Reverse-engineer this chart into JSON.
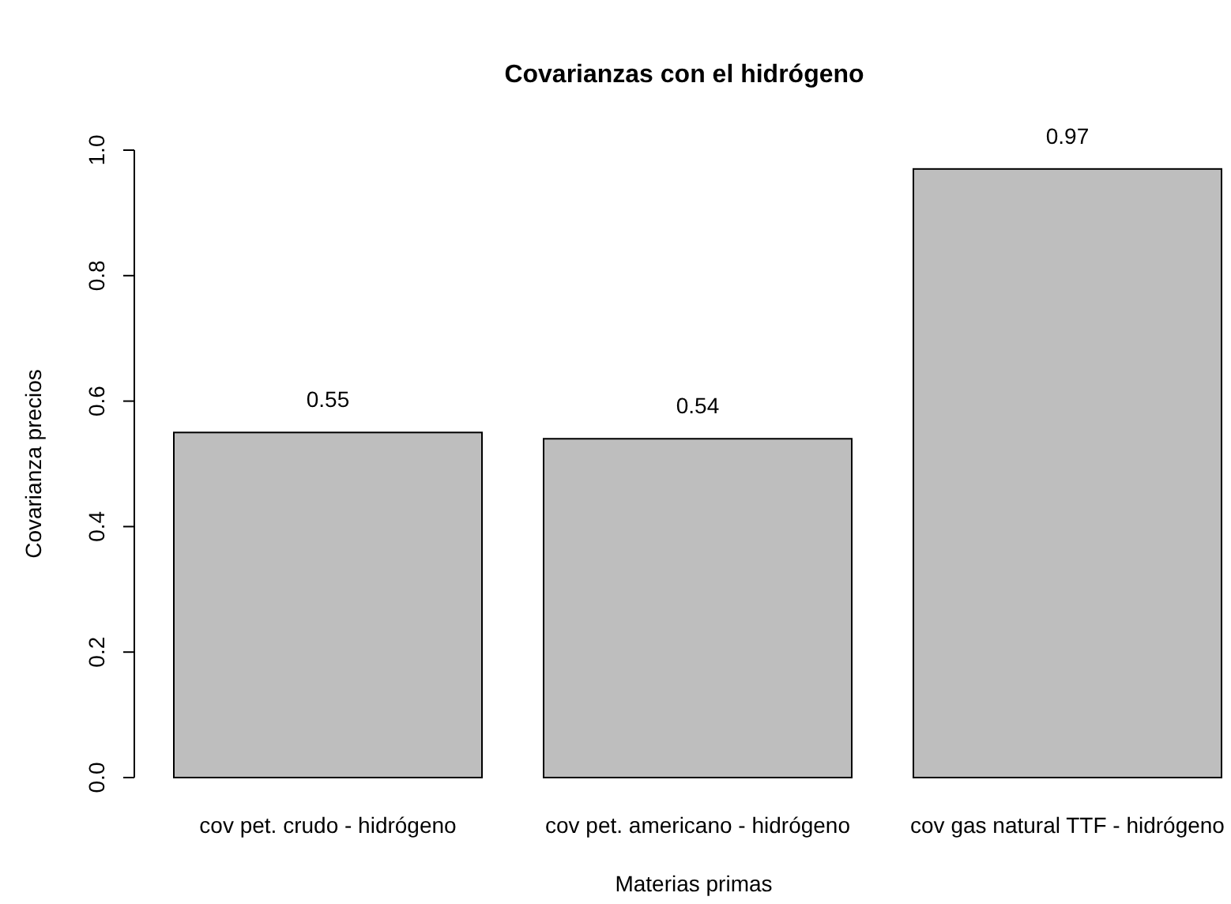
{
  "chart_data": {
    "type": "bar",
    "title": "Covarianzas con el hidrógeno",
    "xlabel": "Materias primas",
    "ylabel": "Covarianza precios",
    "categories": [
      "cov pet. crudo - hidrógeno",
      "cov pet. americano - hidrógeno",
      "cov gas natural TTF - hidrógeno"
    ],
    "values": [
      0.55,
      0.54,
      0.97
    ],
    "color": "#bebebe",
    "data_labels": true,
    "ylim": [
      0,
      1
    ],
    "yticks": [
      {
        "value": 0,
        "label": "0.0"
      },
      {
        "value": 0.2,
        "label": "0.2"
      },
      {
        "value": 0.4,
        "label": "0.4"
      },
      {
        "value": 0.6,
        "label": "0.6"
      },
      {
        "value": 0.8,
        "label": "0.8"
      },
      {
        "value": 1,
        "label": "1.0"
      }
    ],
    "grid": false
  }
}
